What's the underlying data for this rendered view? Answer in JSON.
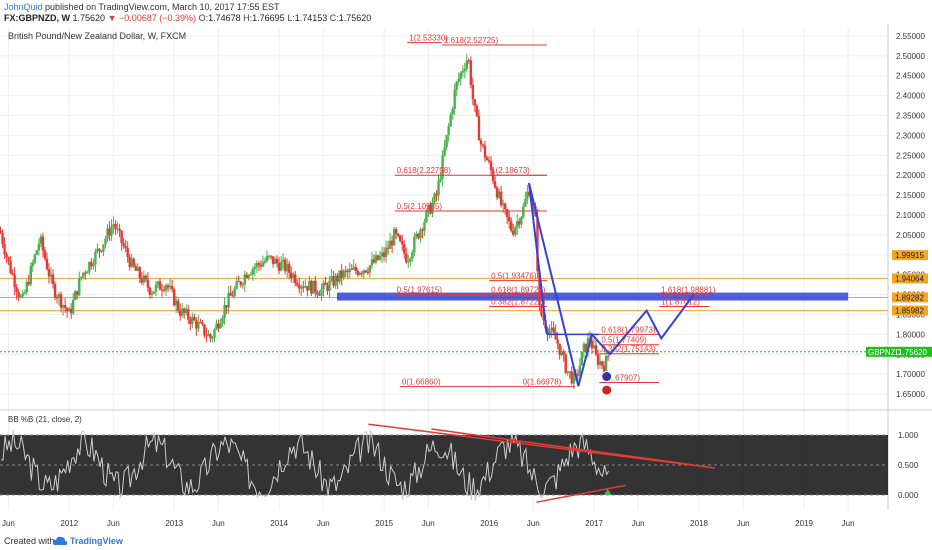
{
  "header": {
    "author": "JohnQuid",
    "published_text": "published on TradingView.com, March 10, 2017 17:55 EST",
    "symbol": "FX:GBPNZD, W",
    "last": "1.75620",
    "change": "▼ −0.00687 (−0.39%)",
    "ohlc": [
      {
        "label": "O:",
        "value": "1.74678"
      },
      {
        "label": "H:",
        "value": "1.76695"
      },
      {
        "label": "L:",
        "value": "1.74153"
      },
      {
        "label": "C:",
        "value": "1.75620"
      }
    ]
  },
  "footer": {
    "created_with": "Created with",
    "brand": "TradingView"
  },
  "colors": {
    "bull": "#4caf50",
    "bear": "#e53935",
    "fib": "#e53935",
    "pattern": "#3343d8",
    "orange_lines": "#f5a623",
    "green_price_line": "#33aa33",
    "price_tag": "#1fbf1f",
    "panel_bg": "#222222",
    "bb_line": "#cccccc"
  },
  "chart_data": [
    {
      "type": "candlestick",
      "title": "British Pound/New Zealand Dollar, W, FXCM",
      "xlabel": "",
      "ylabel": "",
      "x_ticks": [
        "Jun",
        "2012",
        "Jun",
        "2013",
        "Jun",
        "2014",
        "Jun",
        "2015",
        "Jun",
        "2016",
        "Jun",
        "2017",
        "Jun",
        "2018",
        "Jun",
        "2019",
        "Jun"
      ],
      "x_tick_positions": [
        2011.42,
        2012.0,
        2012.42,
        2013.0,
        2013.42,
        2014.0,
        2014.42,
        2015.0,
        2015.42,
        2016.0,
        2016.42,
        2017.0,
        2017.42,
        2018.0,
        2018.42,
        2019.0,
        2019.42
      ],
      "xlim": [
        2011.34,
        2019.8
      ],
      "ylim": [
        1.62,
        2.57
      ],
      "y_ticks": [
        "1.65000",
        "1.70000",
        "1.75000",
        "1.80000",
        "1.85000",
        "1.90000",
        "1.95000",
        "2.00000",
        "2.05000",
        "2.10000",
        "2.15000",
        "2.20000",
        "2.25000",
        "2.30000",
        "2.35000",
        "2.40000",
        "2.45000",
        "2.50000",
        "2.55000"
      ],
      "y_tick_values": [
        1.65,
        1.7,
        1.75,
        1.8,
        1.85,
        1.9,
        1.95,
        2.0,
        2.05,
        2.1,
        2.15,
        2.2,
        2.25,
        2.3,
        2.35,
        2.4,
        2.45,
        2.5,
        2.55
      ],
      "price_path": [
        [
          2011.34,
          2.06
        ],
        [
          2011.42,
          1.98
        ],
        [
          2011.55,
          1.88
        ],
        [
          2011.72,
          2.04
        ],
        [
          2011.84,
          1.92
        ],
        [
          2012.0,
          1.85
        ],
        [
          2012.12,
          1.95
        ],
        [
          2012.3,
          2.02
        ],
        [
          2012.42,
          2.08
        ],
        [
          2012.6,
          1.97
        ],
        [
          2012.78,
          1.91
        ],
        [
          2012.92,
          1.93
        ],
        [
          2013.05,
          1.86
        ],
        [
          2013.2,
          1.83
        ],
        [
          2013.35,
          1.79
        ],
        [
          2013.5,
          1.88
        ],
        [
          2013.7,
          1.96
        ],
        [
          2013.9,
          1.99
        ],
        [
          2014.05,
          1.97
        ],
        [
          2014.2,
          1.93
        ],
        [
          2014.4,
          1.91
        ],
        [
          2014.6,
          1.95
        ],
        [
          2014.85,
          1.97
        ],
        [
          2015.0,
          2.0
        ],
        [
          2015.1,
          2.05
        ],
        [
          2015.22,
          1.99
        ],
        [
          2015.35,
          2.07
        ],
        [
          2015.5,
          2.15
        ],
        [
          2015.6,
          2.3
        ],
        [
          2015.68,
          2.42
        ],
        [
          2015.75,
          2.47
        ],
        [
          2015.8,
          2.5
        ],
        [
          2015.85,
          2.38
        ],
        [
          2015.92,
          2.28
        ],
        [
          2016.02,
          2.21
        ],
        [
          2016.12,
          2.12
        ],
        [
          2016.22,
          2.06
        ],
        [
          2016.32,
          2.11
        ],
        [
          2016.38,
          2.17
        ],
        [
          2016.44,
          2.09
        ],
        [
          2016.48,
          1.86
        ],
        [
          2016.55,
          1.82
        ],
        [
          2016.65,
          1.78
        ],
        [
          2016.74,
          1.71
        ],
        [
          2016.82,
          1.68
        ],
        [
          2016.9,
          1.76
        ],
        [
          2016.96,
          1.79
        ],
        [
          2017.02,
          1.74
        ],
        [
          2017.1,
          1.72
        ],
        [
          2017.15,
          1.76
        ]
      ],
      "current_price": 1.7562,
      "price_tag": "GBPNZD",
      "price_tag_value": "1.75620",
      "right_tags": [
        {
          "text": "1.99915",
          "value": 1.99915
        },
        {
          "text": "1.94064",
          "value": 1.94064
        },
        {
          "text": "1.89282",
          "value": 1.89282
        },
        {
          "text": "1.85982",
          "value": 1.85982
        }
      ],
      "fib_labels": [
        {
          "text": "1(2.53330)",
          "x": 2015.22,
          "y": 2.5333,
          "x2": 2015.55
        },
        {
          "text": "1.618(2.52725)",
          "x": 2015.55,
          "y": 2.5272,
          "x2": 2016.55
        },
        {
          "text": "0.618(2.22798)",
          "x": 2015.1,
          "y": 2.2,
          "x2": 2016.55
        },
        {
          "text": "1(2.18673)",
          "x": 2016.0,
          "y": 2.2,
          "x2": 2016.55
        },
        {
          "text": "0.5(2.10985)",
          "x": 2015.1,
          "y": 2.11,
          "x2": 2016.55
        },
        {
          "text": "0.5(1.97615)",
          "x": 2015.1,
          "y": 1.9,
          "x2": 2016.55
        },
        {
          "text": "0.618(1.89725)",
          "x": 2016.0,
          "y": 1.9,
          "x2": 2016.55
        },
        {
          "text": "0.5(1.93476)",
          "x": 2016.0,
          "y": 1.935,
          "x2": 2016.55
        },
        {
          "text": "0.382(1.87222)",
          "x": 2016.0,
          "y": 1.87,
          "x2": 2016.55
        },
        {
          "text": "1.618(1.98881)",
          "x": 2017.62,
          "y": 1.9,
          "x2": 2018.1
        },
        {
          "text": "1(1.87012)",
          "x": 2017.62,
          "y": 1.87,
          "x2": 2018.1
        },
        {
          "text": "0.618(1.79973)",
          "x": 2017.05,
          "y": 1.8,
          "x2": 2017.62
        },
        {
          "text": "0.5(1.77409)",
          "x": 2017.05,
          "y": 1.774,
          "x2": 2017.62
        },
        {
          "text": "0.382(1.75143)",
          "x": 2017.05,
          "y": 1.7514,
          "x2": 2017.62
        },
        {
          "text": "0(1.67907)",
          "x": 2017.05,
          "y": 1.679,
          "x2": 2017.62
        },
        {
          "text": "0(1.66860)",
          "x": 2015.15,
          "y": 1.6686,
          "x2": 2016.3
        },
        {
          "text": "0(1.66978)",
          "x": 2016.3,
          "y": 1.6686,
          "x2": 2016.82
        }
      ],
      "indicator": {
        "label": "BB %B (21, close, 2)",
        "y_ticks": [
          "1.000",
          "0.500",
          "0.000"
        ],
        "y_tick_values": [
          1.0,
          0.5,
          0.0
        ],
        "ylim": [
          -0.25,
          1.35
        ]
      }
    }
  ]
}
